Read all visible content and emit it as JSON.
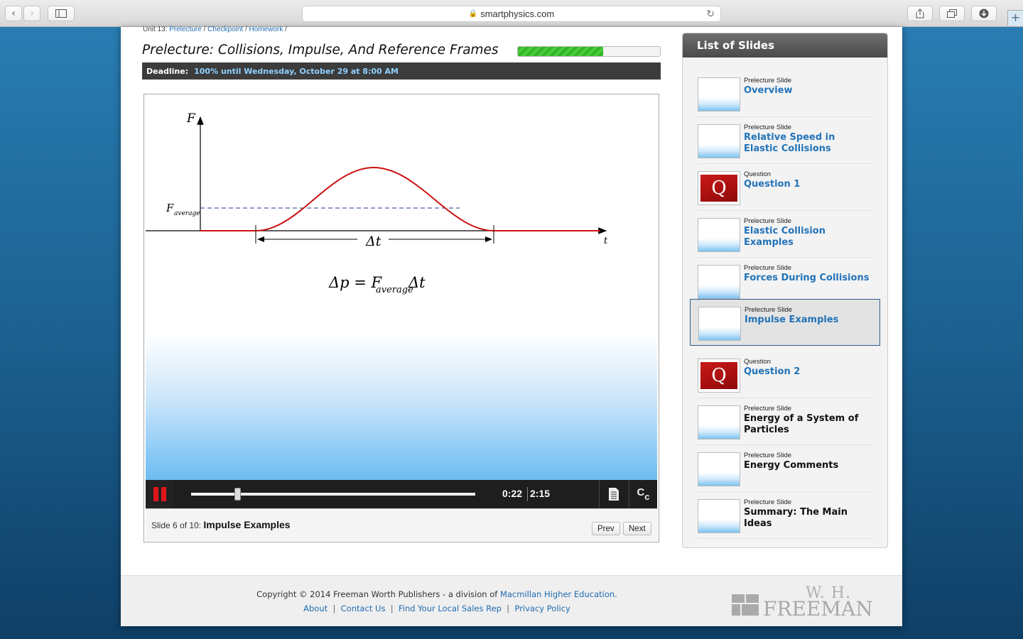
{
  "browser": {
    "url": "smartphysics.com"
  },
  "breadcrumb": {
    "prefix": "Unit 13:",
    "items": [
      "Prelecture",
      "Checkpoint",
      "Homework"
    ],
    "separator": "/"
  },
  "header": {
    "title": "Prelecture: Collisions, Impulse, And Reference Frames",
    "progress_fraction": 0.6,
    "deadline_label": "Deadline:",
    "deadline_value": "100% until Wednesday, October 29 at 8:00 AM"
  },
  "slide": {
    "y_axis_label": "F",
    "x_axis_label": "t",
    "f_average_label": "F",
    "f_average_sub": "average",
    "delta_t_label": "Δt",
    "equation_left": "Δp = F",
    "equation_sub": "average",
    "equation_right": "Δt"
  },
  "player": {
    "current_time": "0:22",
    "duration": "2:15",
    "progress_fraction": 0.163,
    "slide_info_prefix": "Slide 6 of 10:",
    "slide_info_title": "Impulse Examples",
    "prev_label": "Prev",
    "next_label": "Next"
  },
  "sidebar": {
    "title": "List of Slides",
    "items": [
      {
        "type": "Prelecture Slide",
        "name": "Overview",
        "kind": "slide"
      },
      {
        "type": "Prelecture Slide",
        "name": "Relative Speed in Elastic Collisions",
        "kind": "slide"
      },
      {
        "type": "Question",
        "name": "Question 1",
        "kind": "question"
      },
      {
        "type": "Prelecture Slide",
        "name": "Elastic Collision Examples",
        "kind": "slide"
      },
      {
        "type": "Prelecture Slide",
        "name": "Forces During Collisions",
        "kind": "slide"
      },
      {
        "type": "Prelecture Slide",
        "name": "Impulse Examples",
        "kind": "slide",
        "active": true
      },
      {
        "type": "Question",
        "name": "Question 2",
        "kind": "question"
      },
      {
        "type": "Prelecture Slide",
        "name": "Energy of a System of Particles",
        "kind": "slide",
        "unvisited": true
      },
      {
        "type": "Prelecture Slide",
        "name": "Energy Comments",
        "kind": "slide",
        "unvisited": true
      },
      {
        "type": "Prelecture Slide",
        "name": "Summary: The Main Ideas",
        "kind": "slide",
        "unvisited": true
      }
    ]
  },
  "footer": {
    "copyright_text": "Copyright © 2014 Freeman Worth Publishers - a division of",
    "copyright_link": "Macmillan Higher Education",
    "copyright_end": ".",
    "links": [
      "About",
      "Contact Us",
      "Find Your Local Sales Rep",
      "Privacy Policy"
    ],
    "logo_top": "W. H.",
    "logo_bottom": "FREEMAN"
  },
  "colors": {
    "link": "#1f6bb0",
    "curve": "#cc1111",
    "pause": "#e0151b",
    "progress": "#35b32a"
  }
}
